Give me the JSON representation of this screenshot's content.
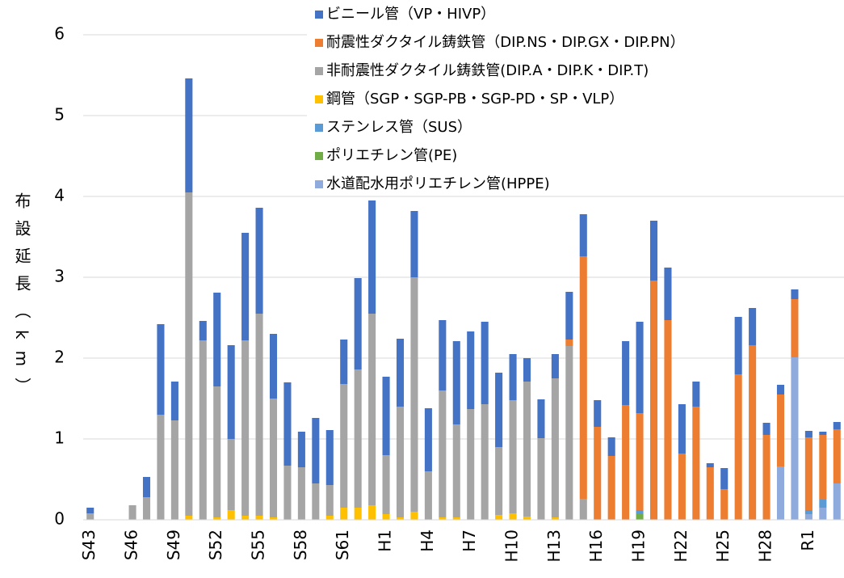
{
  "chart_data": {
    "type": "stacked_bar",
    "y_label": "布設延長（km）",
    "categories": [
      "S43",
      null,
      null,
      "S46",
      null,
      null,
      "S49",
      null,
      null,
      "S52",
      null,
      null,
      "S55",
      null,
      null,
      "S58",
      null,
      null,
      "S61",
      null,
      null,
      "H1",
      null,
      null,
      "H4",
      null,
      null,
      "H7",
      null,
      null,
      "H10",
      null,
      null,
      "H13",
      null,
      null,
      "H16",
      null,
      null,
      "H19",
      null,
      null,
      "H22",
      null,
      null,
      "H25",
      null,
      null,
      "H28",
      null,
      null,
      "R1",
      null,
      null
    ],
    "ylim": [
      0,
      6
    ],
    "yticks": [
      0,
      1,
      2,
      3,
      4,
      5,
      6
    ],
    "grid": true,
    "legend": "top",
    "series": [
      {
        "name": "水道配水用ポリエチレン管(HPPE)",
        "color": "#8faadc",
        "values": [
          0,
          0,
          0,
          0,
          0,
          0,
          0,
          0,
          0,
          0,
          0,
          0,
          0,
          0,
          0,
          0,
          0,
          0,
          0,
          0,
          0,
          0,
          0,
          0,
          0,
          0,
          0,
          0,
          0,
          0,
          0,
          0,
          0,
          0,
          0,
          0,
          0,
          0,
          0,
          0,
          0,
          0,
          0,
          0,
          0,
          0,
          0,
          0,
          0,
          0.66,
          2.01,
          0.07,
          0.15,
          0.45
        ]
      },
      {
        "name": "ポリエチレン管(PE)",
        "color": "#70ad47",
        "values": [
          0,
          0,
          0,
          0,
          0,
          0,
          0,
          0,
          0,
          0,
          0,
          0,
          0,
          0,
          0,
          0,
          0,
          0,
          0,
          0,
          0,
          0,
          0,
          0,
          0,
          0,
          0,
          0,
          0,
          0,
          0,
          0,
          0,
          0,
          0,
          0,
          0,
          0,
          0,
          0.07,
          0,
          0,
          0,
          0,
          0,
          0,
          0,
          0,
          0,
          0,
          0,
          0,
          0,
          0
        ]
      },
      {
        "name": "ステンレス管（SUS）",
        "color": "#5b9bd5",
        "values": [
          0,
          0,
          0,
          0,
          0,
          0,
          0,
          0,
          0,
          0,
          0,
          0,
          0,
          0,
          0,
          0,
          0,
          0,
          0,
          0,
          0,
          0,
          0,
          0,
          0,
          0,
          0,
          0,
          0,
          0,
          0,
          0,
          0,
          0,
          0,
          0,
          0,
          0,
          0,
          0.05,
          0,
          0,
          0,
          0,
          0,
          0,
          0,
          0,
          0,
          0,
          0,
          0.05,
          0.1,
          0
        ]
      },
      {
        "name": "鋼管（SGP・SGP-PB・SGP-PD・SP・VLP）",
        "color": "#ffc000",
        "values": [
          0,
          0,
          0,
          0,
          0,
          0,
          0,
          0.05,
          0,
          0.03,
          0.12,
          0.05,
          0.05,
          0.03,
          0,
          0,
          0,
          0.05,
          0.15,
          0.15,
          0.18,
          0.07,
          0.03,
          0.1,
          0,
          0.03,
          0.03,
          0,
          0,
          0.06,
          0.08,
          0.04,
          0,
          0.03,
          0,
          0,
          0,
          0,
          0,
          0,
          0,
          0,
          0,
          0,
          0,
          0,
          0,
          0,
          0,
          0,
          0,
          0,
          0,
          0
        ]
      },
      {
        "name": "非耐震性ダクタイル鋳鉄管(DIP.A・DIP.K・DIP.T)",
        "color": "#a5a5a5",
        "values": [
          0.08,
          0,
          0,
          0.18,
          0.28,
          1.3,
          1.23,
          4,
          2.22,
          1.62,
          0.88,
          2.17,
          2.5,
          1.47,
          0.67,
          0.65,
          0.45,
          0.38,
          1.53,
          1.71,
          2.37,
          0.73,
          1.37,
          2.9,
          0.6,
          1.57,
          1.15,
          1.37,
          1.43,
          0.84,
          1.4,
          1.67,
          1.01,
          1.72,
          2.15,
          0.26,
          0,
          0,
          0,
          0,
          0,
          0,
          0,
          0,
          0,
          0,
          0,
          0,
          0,
          0,
          0,
          0,
          0,
          0
        ]
      },
      {
        "name": "耐震性ダクタイル鋳鉄管（DIP.NS・DIP.GX・DIP.PN）",
        "color": "#ed7d31",
        "values": [
          0,
          0,
          0,
          0,
          0,
          0,
          0,
          0,
          0,
          0,
          0,
          0,
          0,
          0,
          0,
          0,
          0,
          0,
          0,
          0,
          0,
          0,
          0,
          0,
          0,
          0,
          0,
          0,
          0,
          0,
          0,
          0,
          0,
          0,
          0.08,
          3,
          1.15,
          0.79,
          1.42,
          1.2,
          2.96,
          2.47,
          0.82,
          1.4,
          0.65,
          0.38,
          1.8,
          2.16,
          1.05,
          0.89,
          0.72,
          0.9,
          0.8,
          0.67
        ]
      },
      {
        "name": "ビニール管（VP・HIVP）",
        "color": "#4472c4",
        "values": [
          0.07,
          0,
          0,
          0,
          0.25,
          1.12,
          0.48,
          1.41,
          0.24,
          1.16,
          1.16,
          1.33,
          1.31,
          0.8,
          1.03,
          0.44,
          0.81,
          0.68,
          0.55,
          1.13,
          1.4,
          0.97,
          0.84,
          0.82,
          0.78,
          0.87,
          1.03,
          0.96,
          1.02,
          0.92,
          0.57,
          0.29,
          0.48,
          0.3,
          0.59,
          0.52,
          0.33,
          0.23,
          0.79,
          1.13,
          0.74,
          0.65,
          0.61,
          0.31,
          0.05,
          0.26,
          0.71,
          0.46,
          0.15,
          0.12,
          0.12,
          0.08,
          0.04,
          0.09
        ]
      }
    ]
  }
}
